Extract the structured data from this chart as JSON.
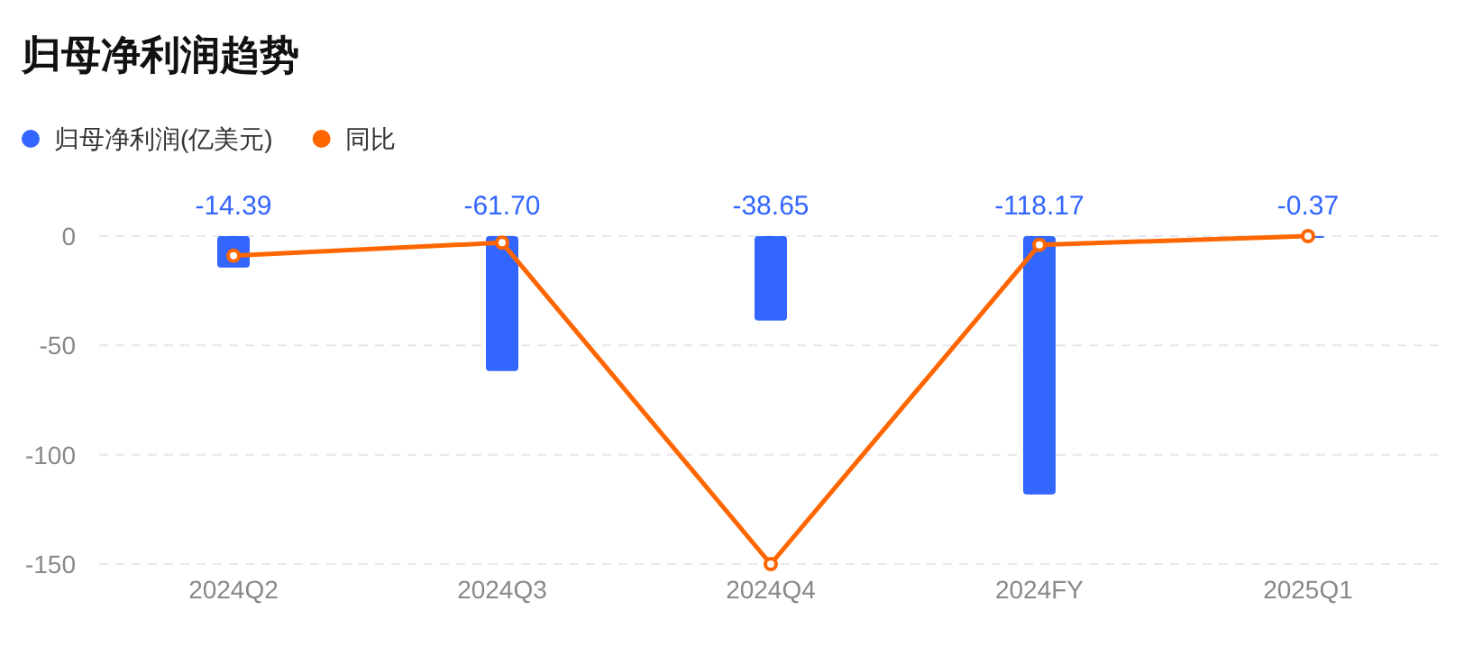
{
  "chart_data": {
    "type": "bar",
    "title": "归母净利润趋势",
    "categories": [
      "2024Q2",
      "2024Q3",
      "2024Q4",
      "2024FY",
      "2025Q1"
    ],
    "series": [
      {
        "name": "归母净利润(亿美元)",
        "color": "#3366ff",
        "values": [
          -14.39,
          -61.7,
          -38.65,
          -118.17,
          -0.37
        ],
        "value_labels": [
          "-14.39",
          "-61.70",
          "-38.65",
          "-118.17",
          "-0.37"
        ]
      },
      {
        "name": "同比",
        "type": "line",
        "color": "#ff6600",
        "marker": "circle",
        "values": [
          -9,
          -3,
          -150,
          -4,
          0
        ]
      }
    ],
    "ylim": [
      -150,
      0
    ],
    "yticks": [
      0,
      -50,
      -100,
      -150
    ],
    "grid": "y",
    "legend": "top left"
  }
}
